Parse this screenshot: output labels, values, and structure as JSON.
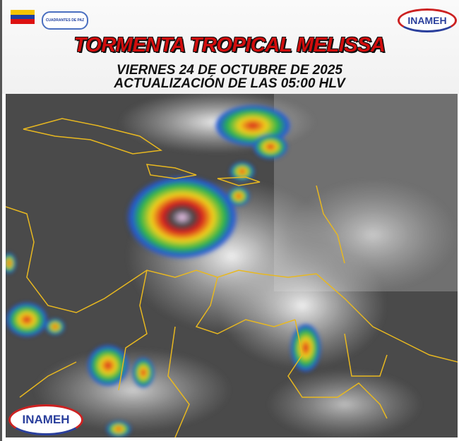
{
  "header": {
    "title": "TORMENTA TROPICAL MELISSA",
    "date_line": "VIERNES 24 DE OCTUBRE DE 2025",
    "update_line": "ACTUALIZACIÓN DE LAS 05:00 HLV"
  },
  "logos": {
    "top_right": "INAMEH",
    "bottom_left": "INAMEH",
    "cuadrantes": "CUADRANTES DE PAZ"
  },
  "colors": {
    "title_red": "#d10d0d",
    "border_yellow": "#e8b820",
    "storm_red": "#d81e1e",
    "storm_green": "#27b34a",
    "storm_blue": "#2456d8"
  }
}
